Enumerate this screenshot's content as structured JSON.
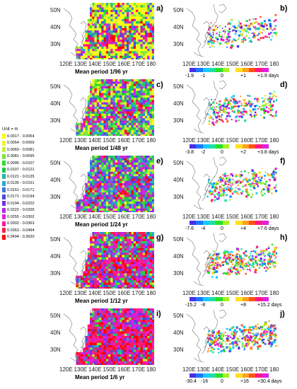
{
  "legend": {
    "unit": "Unit = m",
    "items": [
      {
        "range": "0.0017 - 0.0054",
        "color": "#ffff00"
      },
      {
        "range": "0.0054 - 0.0069",
        "color": "#f2f22e"
      },
      {
        "range": "0.0069 - 0.0081",
        "color": "#c8ee3c"
      },
      {
        "range": "0.0081 - 0.0095",
        "color": "#7de83c"
      },
      {
        "range": "0.0095 - 0.0107",
        "color": "#2ee02e"
      },
      {
        "range": "0.0107 - 0.0121",
        "color": "#1cc84c"
      },
      {
        "range": "0.0121 - 0.0135",
        "color": "#20b89c"
      },
      {
        "range": "0.0135 - 0.0151",
        "color": "#2aa8d8"
      },
      {
        "range": "0.0151 - 0.0171",
        "color": "#3c78e0"
      },
      {
        "range": "0.0171 - 0.0194",
        "color": "#4848e6"
      },
      {
        "range": "0.0194 - 0.0222",
        "color": "#7a2ee8"
      },
      {
        "range": "0.0222 - 0.0255",
        "color": "#b428e8"
      },
      {
        "range": "0.0255 - 0.0302",
        "color": "#e020e0"
      },
      {
        "range": "0.0302 - 0.0363",
        "color": "#ff1aa0"
      },
      {
        "range": "0.0363 - 0.0494",
        "color": "#ff1a50"
      },
      {
        "range": "0.0494 - 0.3620",
        "color": "#ff0000"
      }
    ]
  },
  "map_axes": {
    "lat_labels": [
      "50N",
      "40N",
      "30N"
    ],
    "lon_labels": [
      "120E",
      "130E",
      "140E",
      "150E",
      "160E",
      "170E",
      "180"
    ]
  },
  "panels": [
    {
      "left_label": "a)",
      "right_label": "b)",
      "period_label": "Mean period  1/96 yr",
      "cbar_ticks": [
        "-1.9",
        "-1",
        "0",
        "+1",
        "+1.9 days"
      ]
    },
    {
      "left_label": "c)",
      "right_label": "d)",
      "period_label": "Mean period  1/48 yr",
      "cbar_ticks": [
        "-3.8",
        "-2",
        "0",
        "+2",
        "+3.8 days"
      ]
    },
    {
      "left_label": "e)",
      "right_label": "f)",
      "period_label": "Mean period  1/24 yr",
      "cbar_ticks": [
        "-7.6",
        "-4",
        "0",
        "+4",
        "+7.6 days"
      ]
    },
    {
      "left_label": "g)",
      "right_label": "h)",
      "period_label": "Mean period  1/12 yr",
      "cbar_ticks": [
        "-15.2",
        "-8",
        "0",
        "+8",
        "+15.2 days"
      ]
    },
    {
      "left_label": "i)",
      "right_label": "j)",
      "period_label": "Mean period  1/6 yr",
      "cbar_ticks": [
        "-30.4",
        "-16",
        "0",
        "+16",
        "+30.4 days"
      ]
    }
  ],
  "diverging_colors": [
    "#4a2ee8",
    "#1a78ff",
    "#18c8ff",
    "#20e0a0",
    "#28e028",
    "#a8f028",
    "#ffffff",
    "#ffe020",
    "#ffa020",
    "#ff5020",
    "#ff1a80",
    "#e020e0"
  ],
  "panel_fill_weights": {
    "a": [
      0.45,
      0.2,
      0.15,
      0.1,
      0.1
    ],
    "c": [
      0.15,
      0.4,
      0.2,
      0.15,
      0.1
    ],
    "e": [
      0.05,
      0.3,
      0.3,
      0.25,
      0.1
    ],
    "g": [
      0.02,
      0.2,
      0.2,
      0.23,
      0.35
    ],
    "i": [
      0.0,
      0.1,
      0.15,
      0.25,
      0.5
    ]
  }
}
